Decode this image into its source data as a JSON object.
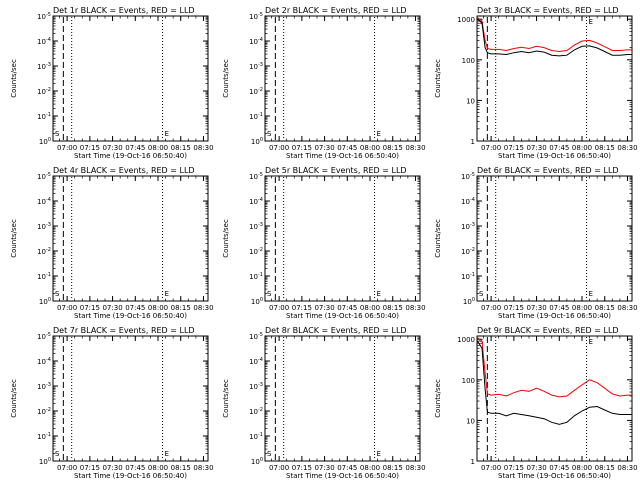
{
  "colors": {
    "background": "#ffffff",
    "events": "#000000",
    "lld": "#ff0000"
  },
  "chart_data": [
    {
      "type": "line",
      "title": "Det 1r BLACK = Events, RED = LLD",
      "xlabel": "Start Time (19-Oct-16 06:50:40)",
      "ylabel": "Counts/sec",
      "yscale": "log",
      "ytick_labels": [
        "10^0",
        "10^-1",
        "10^-2",
        "10^-3",
        "10^-4",
        "10^-5"
      ],
      "xtick_labels": [
        "07:00",
        "07:15",
        "07:30",
        "07:45",
        "08:00",
        "08:15",
        "08:30"
      ],
      "xlim": [
        "06:50:40",
        "08:33"
      ],
      "markers": {
        "dashed": "06:57:30",
        "dotted": [
          "07:03",
          "08:03",
          "08:33"
        ]
      },
      "annotations": [
        {
          "text": "S",
          "x": "06:50:40"
        },
        {
          "text": "E",
          "x": "08:03"
        }
      ],
      "series": []
    },
    {
      "type": "line",
      "title": "Det 2r BLACK = Events, RED = LLD",
      "xlabel": "Start Time (19-Oct-16 06:50:40)",
      "ylabel": "Counts/sec",
      "yscale": "log",
      "ytick_labels": [
        "10^0",
        "10^-1",
        "10^-2",
        "10^-3",
        "10^-4",
        "10^-5"
      ],
      "xtick_labels": [
        "07:00",
        "07:15",
        "07:30",
        "07:45",
        "08:00",
        "08:15",
        "08:30"
      ],
      "xlim": [
        "06:50:40",
        "08:33"
      ],
      "markers": {
        "dashed": "06:57:30",
        "dotted": [
          "07:03",
          "08:03",
          "08:33"
        ]
      },
      "annotations": [
        {
          "text": "S",
          "x": "06:50:40"
        },
        {
          "text": "E",
          "x": "08:03"
        }
      ],
      "series": []
    },
    {
      "type": "line",
      "title": "Det 3r BLACK = Events, RED = LLD",
      "xlabel": "Start Time (19-Oct-16 06:50:40)",
      "ylabel": "Counts/sec",
      "yscale": "log",
      "ylim": [
        1,
        1200
      ],
      "ytick_labels": [
        "1",
        "10",
        "100",
        "1000"
      ],
      "xtick_labels": [
        "07:00",
        "07:15",
        "07:30",
        "07:45",
        "08:00",
        "08:15",
        "08:30"
      ],
      "xlim": [
        "06:50:40",
        "08:33"
      ],
      "markers": {
        "dashed": "06:57:30",
        "dotted": [
          "07:03",
          "08:03",
          "08:33"
        ]
      },
      "annotations": [
        {
          "text": "S",
          "x": "06:50:40"
        },
        {
          "text": "E",
          "x": "08:03"
        }
      ],
      "series": [
        {
          "color": "#ff0000",
          "points": [
            [
              "06:51",
              1100
            ],
            [
              "06:54",
              900
            ],
            [
              "06:56",
              300
            ],
            [
              "06:57:30",
              190
            ],
            [
              "07:00",
              180
            ],
            [
              "07:05",
              180
            ],
            [
              "07:10",
              170
            ],
            [
              "07:15",
              190
            ],
            [
              "07:20",
              205
            ],
            [
              "07:25",
              190
            ],
            [
              "07:30",
              215
            ],
            [
              "07:35",
              200
            ],
            [
              "07:40",
              170
            ],
            [
              "07:45",
              160
            ],
            [
              "07:50",
              170
            ],
            [
              "07:55",
              230
            ],
            [
              "08:00",
              290
            ],
            [
              "08:05",
              300
            ],
            [
              "08:10",
              260
            ],
            [
              "08:15",
              210
            ],
            [
              "08:20",
              170
            ],
            [
              "08:25",
              170
            ],
            [
              "08:30",
              175
            ],
            [
              "08:33",
              175
            ]
          ]
        },
        {
          "color": "#000000",
          "points": [
            [
              "06:51",
              1000
            ],
            [
              "06:54",
              800
            ],
            [
              "06:56",
              200
            ],
            [
              "06:57:30",
              150
            ],
            [
              "07:00",
              140
            ],
            [
              "07:05",
              140
            ],
            [
              "07:10",
              135
            ],
            [
              "07:15",
              150
            ],
            [
              "07:20",
              160
            ],
            [
              "07:25",
              150
            ],
            [
              "07:30",
              165
            ],
            [
              "07:35",
              155
            ],
            [
              "07:40",
              130
            ],
            [
              "07:45",
              125
            ],
            [
              "07:50",
              130
            ],
            [
              "07:55",
              175
            ],
            [
              "08:00",
              215
            ],
            [
              "08:05",
              220
            ],
            [
              "08:10",
              195
            ],
            [
              "08:15",
              160
            ],
            [
              "08:20",
              130
            ],
            [
              "08:25",
              130
            ],
            [
              "08:30",
              135
            ],
            [
              "08:33",
              135
            ]
          ]
        }
      ]
    },
    {
      "type": "line",
      "title": "Det 4r BLACK = Events, RED = LLD",
      "xlabel": "Start Time (19-Oct-16 06:50:40)",
      "ylabel": "Counts/sec",
      "yscale": "log",
      "ytick_labels": [
        "10^0",
        "10^-1",
        "10^-2",
        "10^-3",
        "10^-4",
        "10^-5"
      ],
      "xtick_labels": [
        "07:00",
        "07:15",
        "07:30",
        "07:45",
        "08:00",
        "08:15",
        "08:30"
      ],
      "xlim": [
        "06:50:40",
        "08:33"
      ],
      "markers": {
        "dashed": "06:57:30",
        "dotted": [
          "07:03",
          "08:03",
          "08:33"
        ]
      },
      "annotations": [
        {
          "text": "S",
          "x": "06:50:40"
        },
        {
          "text": "E",
          "x": "08:03"
        }
      ],
      "series": []
    },
    {
      "type": "line",
      "title": "Det 5r BLACK = Events, RED = LLD",
      "xlabel": "Start Time (19-Oct-16 06:50:40)",
      "ylabel": "Counts/sec",
      "yscale": "log",
      "ytick_labels": [
        "10^0",
        "10^-1",
        "10^-2",
        "10^-3",
        "10^-4",
        "10^-5"
      ],
      "xtick_labels": [
        "07:00",
        "07:15",
        "07:30",
        "07:45",
        "08:00",
        "08:15",
        "08:30"
      ],
      "xlim": [
        "06:50:40",
        "08:33"
      ],
      "markers": {
        "dashed": "06:57:30",
        "dotted": [
          "07:03",
          "08:03",
          "08:33"
        ]
      },
      "annotations": [
        {
          "text": "S",
          "x": "06:50:40"
        },
        {
          "text": "E",
          "x": "08:03"
        }
      ],
      "series": []
    },
    {
      "type": "line",
      "title": "Det 6r BLACK = Events, RED = LLD",
      "xlabel": "Start Time (19-Oct-16 06:50:40)",
      "ylabel": "Counts/sec",
      "yscale": "log",
      "ytick_labels": [
        "10^0",
        "10^-1",
        "10^-2",
        "10^-3",
        "10^-4",
        "10^-5"
      ],
      "xtick_labels": [
        "07:00",
        "07:15",
        "07:30",
        "07:45",
        "08:00",
        "08:15",
        "08:30"
      ],
      "xlim": [
        "06:50:40",
        "08:33"
      ],
      "markers": {
        "dashed": "06:57:30",
        "dotted": [
          "07:03",
          "08:03",
          "08:33"
        ]
      },
      "annotations": [
        {
          "text": "S",
          "x": "06:50:40"
        },
        {
          "text": "E",
          "x": "08:03"
        }
      ],
      "series": []
    },
    {
      "type": "line",
      "title": "Det 7r BLACK = Events, RED = LLD",
      "xlabel": "Start Time (19-Oct-16 06:50:40)",
      "ylabel": "Counts/sec",
      "yscale": "log",
      "ytick_labels": [
        "10^0",
        "10^-1",
        "10^-2",
        "10^-3",
        "10^-4",
        "10^-5"
      ],
      "xtick_labels": [
        "07:00",
        "07:15",
        "07:30",
        "07:45",
        "08:00",
        "08:15",
        "08:30"
      ],
      "xlim": [
        "06:50:40",
        "08:33"
      ],
      "markers": {
        "dashed": "06:57:30",
        "dotted": [
          "07:03",
          "08:03",
          "08:33"
        ]
      },
      "annotations": [
        {
          "text": "S",
          "x": "06:50:40"
        },
        {
          "text": "E",
          "x": "08:03"
        }
      ],
      "series": []
    },
    {
      "type": "line",
      "title": "Det 8r BLACK = Events, RED = LLD",
      "xlabel": "Start Time (19-Oct-16 06:50:40)",
      "ylabel": "Counts/sec",
      "yscale": "log",
      "ytick_labels": [
        "10^0",
        "10^-1",
        "10^-2",
        "10^-3",
        "10^-4",
        "10^-5"
      ],
      "xtick_labels": [
        "07:00",
        "07:15",
        "07:30",
        "07:45",
        "08:00",
        "08:15",
        "08:30"
      ],
      "xlim": [
        "06:50:40",
        "08:33"
      ],
      "markers": {
        "dashed": "06:57:30",
        "dotted": [
          "07:03",
          "08:03",
          "08:33"
        ]
      },
      "annotations": [
        {
          "text": "S",
          "x": "06:50:40"
        },
        {
          "text": "E",
          "x": "08:03"
        }
      ],
      "series": []
    },
    {
      "type": "line",
      "title": "Det 9r BLACK = Events, RED = LLD",
      "xlabel": "Start Time (19-Oct-16 06:50:40)",
      "ylabel": "Counts/sec",
      "yscale": "log",
      "ylim": [
        1,
        1200
      ],
      "ytick_labels": [
        "1",
        "10",
        "100",
        "1000"
      ],
      "xtick_labels": [
        "07:00",
        "07:15",
        "07:30",
        "07:45",
        "08:00",
        "08:15",
        "08:30"
      ],
      "xlim": [
        "06:50:40",
        "08:33"
      ],
      "markers": {
        "dashed": "06:57:30",
        "dotted": [
          "07:03",
          "08:03",
          "08:33"
        ]
      },
      "annotations": [
        {
          "text": "S",
          "x": "06:50:40"
        },
        {
          "text": "E",
          "x": "08:03"
        }
      ],
      "series": [
        {
          "color": "#ff0000",
          "points": [
            [
              "06:51",
              1100
            ],
            [
              "06:54",
              900
            ],
            [
              "06:56",
              150
            ],
            [
              "06:57:30",
              45
            ],
            [
              "07:00",
              42
            ],
            [
              "07:05",
              44
            ],
            [
              "07:10",
              40
            ],
            [
              "07:15",
              48
            ],
            [
              "07:20",
              55
            ],
            [
              "07:25",
              52
            ],
            [
              "07:30",
              62
            ],
            [
              "07:35",
              52
            ],
            [
              "07:40",
              42
            ],
            [
              "07:45",
              38
            ],
            [
              "07:50",
              40
            ],
            [
              "07:55",
              55
            ],
            [
              "08:00",
              75
            ],
            [
              "08:05",
              100
            ],
            [
              "08:10",
              85
            ],
            [
              "08:15",
              62
            ],
            [
              "08:20",
              45
            ],
            [
              "08:25",
              40
            ],
            [
              "08:30",
              42
            ],
            [
              "08:33",
              42
            ]
          ]
        },
        {
          "color": "#000000",
          "points": [
            [
              "06:51",
              900
            ],
            [
              "06:54",
              600
            ],
            [
              "06:56",
              60
            ],
            [
              "06:57:30",
              16
            ],
            [
              "07:00",
              15
            ],
            [
              "07:05",
              15
            ],
            [
              "07:10",
              13
            ],
            [
              "07:15",
              15
            ],
            [
              "07:20",
              14
            ],
            [
              "07:25",
              13
            ],
            [
              "07:30",
              12
            ],
            [
              "07:35",
              11
            ],
            [
              "07:40",
              9
            ],
            [
              "07:45",
              8
            ],
            [
              "07:50",
              9
            ],
            [
              "07:55",
              13
            ],
            [
              "08:00",
              17
            ],
            [
              "08:05",
              21
            ],
            [
              "08:10",
              22
            ],
            [
              "08:15",
              18
            ],
            [
              "08:20",
              15
            ],
            [
              "08:25",
              14
            ],
            [
              "08:30",
              14
            ],
            [
              "08:33",
              14
            ]
          ]
        }
      ]
    }
  ]
}
